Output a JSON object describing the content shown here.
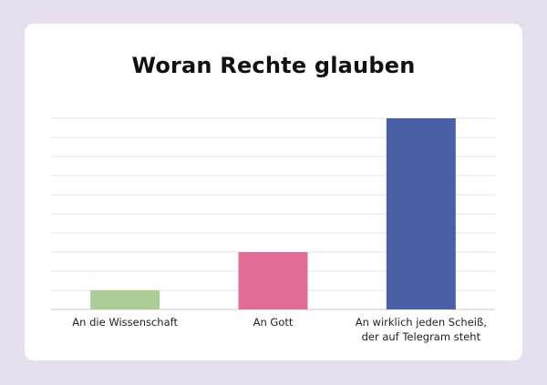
{
  "chart_data": {
    "type": "bar",
    "title": "Woran Rechte glauben",
    "categories": [
      "An die Wissenschaft",
      "An Gott",
      "An wirklich jeden Scheiß,\nder auf Telegram steht"
    ],
    "values": [
      1,
      3,
      10
    ],
    "colors": [
      "#acce96",
      "#e06c97",
      "#4a5fa6"
    ],
    "ylim": [
      0,
      10
    ],
    "grid": true,
    "gridline_count": 10,
    "xlabel": "",
    "ylabel": ""
  }
}
